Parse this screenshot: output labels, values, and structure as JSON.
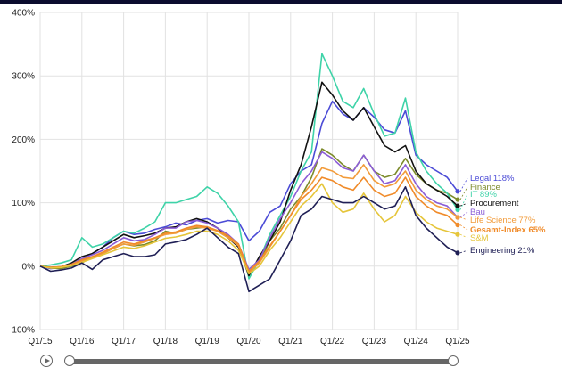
{
  "chart_data": {
    "type": "line",
    "title": "",
    "xlabel": "",
    "ylabel": "",
    "ylim": [
      -100,
      400
    ],
    "yticks": [
      -100,
      0,
      100,
      200,
      300,
      400
    ],
    "ytick_labels": [
      "-100%",
      "0%",
      "100%",
      "200%",
      "300%",
      "400%"
    ],
    "xticks": [
      0,
      1,
      2,
      3,
      4,
      5,
      6,
      7,
      8,
      9,
      10
    ],
    "xtick_labels": [
      "Q1/15",
      "Q1/16",
      "Q1/17",
      "Q1/18",
      "Q1/19",
      "Q1/20",
      "Q1/21",
      "Q1/22",
      "Q1/23",
      "Q1/24",
      "Q1/25"
    ],
    "xlim": [
      0,
      10
    ],
    "grid": true,
    "x": [
      0,
      0.25,
      0.5,
      0.75,
      1,
      1.25,
      1.5,
      1.75,
      2,
      2.25,
      2.5,
      2.75,
      3,
      3.25,
      3.5,
      3.75,
      4,
      4.25,
      4.5,
      4.75,
      5,
      5.25,
      5.5,
      5.75,
      6,
      6.25,
      6.5,
      6.75,
      7,
      7.25,
      7.5,
      7.75,
      8,
      8.25,
      8.5,
      8.75,
      9,
      9.25,
      9.5,
      9.75,
      10
    ],
    "series": [
      {
        "name": "Legal",
        "label": "Legal 118%",
        "color": "#4b4bd6",
        "values": [
          0,
          -4,
          -2,
          2,
          10,
          20,
          30,
          45,
          55,
          50,
          52,
          58,
          62,
          68,
          65,
          72,
          75,
          68,
          72,
          70,
          40,
          55,
          85,
          95,
          130,
          150,
          160,
          225,
          260,
          240,
          230,
          250,
          235,
          215,
          210,
          245,
          175,
          160,
          150,
          140,
          118
        ]
      },
      {
        "name": "Finance",
        "label": "Finance",
        "color": "#7c8a2a",
        "values": [
          0,
          -3,
          -4,
          0,
          5,
          15,
          20,
          28,
          35,
          32,
          34,
          40,
          55,
          52,
          58,
          60,
          62,
          55,
          45,
          35,
          -10,
          5,
          40,
          60,
          90,
          110,
          140,
          185,
          175,
          160,
          150,
          175,
          150,
          140,
          145,
          170,
          145,
          130,
          120,
          115,
          105
        ]
      },
      {
        "name": "IT",
        "label": "IT 89%",
        "color": "#3ed3a8",
        "values": [
          0,
          2,
          5,
          10,
          45,
          30,
          35,
          45,
          55,
          52,
          60,
          70,
          100,
          100,
          105,
          110,
          125,
          115,
          95,
          70,
          -20,
          10,
          50,
          80,
          110,
          150,
          180,
          335,
          300,
          260,
          250,
          280,
          240,
          205,
          210,
          265,
          180,
          150,
          130,
          115,
          89
        ]
      },
      {
        "name": "Procurement",
        "label": "Procurement",
        "color": "#111111",
        "values": [
          0,
          -2,
          -1,
          5,
          15,
          20,
          30,
          40,
          50,
          45,
          48,
          52,
          60,
          62,
          70,
          75,
          70,
          60,
          45,
          30,
          -15,
          15,
          40,
          70,
          120,
          160,
          220,
          290,
          270,
          245,
          230,
          250,
          220,
          190,
          180,
          190,
          150,
          130,
          120,
          110,
          95
        ]
      },
      {
        "name": "Bau",
        "label": "Bau",
        "color": "#8b5dd6",
        "values": [
          0,
          -3,
          -1,
          3,
          12,
          18,
          25,
          35,
          45,
          40,
          42,
          50,
          60,
          60,
          70,
          72,
          68,
          60,
          50,
          35,
          -5,
          10,
          45,
          75,
          100,
          130,
          150,
          180,
          170,
          155,
          150,
          175,
          150,
          130,
          135,
          160,
          130,
          110,
          100,
          95,
          77
        ]
      },
      {
        "name": "Life Science",
        "label": "Life Science 77%",
        "color": "#f29b3a",
        "values": [
          0,
          -2,
          -1,
          2,
          8,
          14,
          20,
          28,
          35,
          33,
          38,
          44,
          50,
          52,
          58,
          62,
          60,
          55,
          45,
          32,
          -10,
          5,
          30,
          55,
          80,
          110,
          130,
          155,
          150,
          140,
          138,
          160,
          135,
          125,
          130,
          150,
          120,
          105,
          95,
          90,
          77
        ]
      },
      {
        "name": "Gesamt-Index",
        "label": "Gesamt-Index 65%",
        "color": "#f08b2a",
        "values": [
          0,
          -2,
          -1,
          3,
          10,
          15,
          22,
          30,
          38,
          35,
          40,
          45,
          52,
          54,
          60,
          64,
          62,
          56,
          48,
          35,
          -8,
          8,
          32,
          55,
          80,
          105,
          120,
          140,
          135,
          125,
          120,
          140,
          120,
          110,
          115,
          140,
          110,
          95,
          85,
          80,
          65
        ]
      },
      {
        "name": "S&M",
        "label": "S&M",
        "color": "#e5c53a",
        "values": [
          0,
          -3,
          -2,
          1,
          6,
          12,
          18,
          24,
          30,
          28,
          32,
          38,
          44,
          46,
          50,
          55,
          55,
          50,
          40,
          25,
          -12,
          0,
          25,
          45,
          70,
          95,
          110,
          130,
          100,
          85,
          90,
          115,
          90,
          70,
          80,
          110,
          85,
          70,
          60,
          55,
          50
        ]
      },
      {
        "name": "Engineering",
        "label": "Engineering 21%",
        "color": "#1f1f55",
        "values": [
          0,
          -8,
          -6,
          -3,
          5,
          -5,
          10,
          15,
          20,
          15,
          15,
          18,
          35,
          38,
          42,
          50,
          60,
          45,
          30,
          20,
          -40,
          -30,
          -20,
          10,
          40,
          80,
          90,
          110,
          105,
          100,
          100,
          110,
          100,
          90,
          95,
          125,
          80,
          60,
          45,
          30,
          21
        ]
      }
    ]
  }
}
